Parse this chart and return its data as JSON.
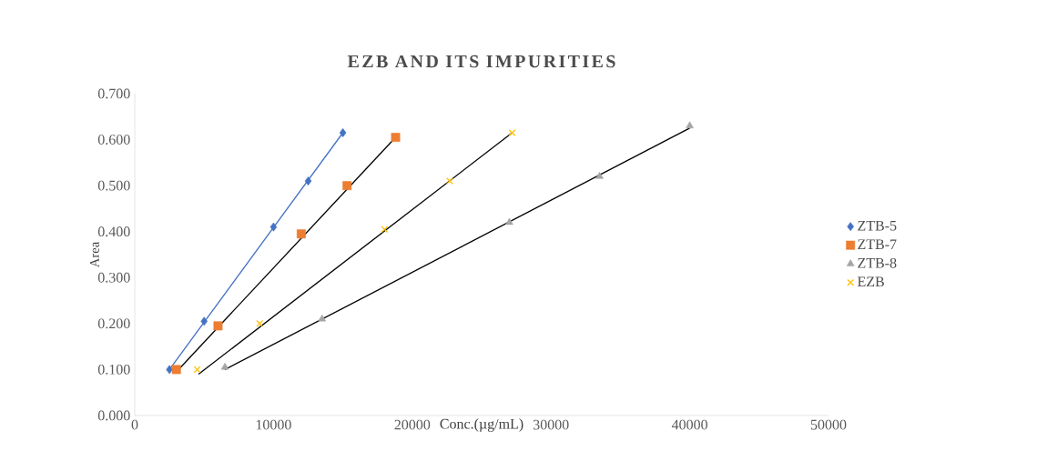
{
  "chart_data": {
    "type": "scatter",
    "title": "EZB AND ITS IMPURITIES",
    "xlabel": "Conc.(µg/mL)",
    "ylabel": "Area",
    "xlim": [
      0,
      50000
    ],
    "xticks": [
      0,
      10000,
      20000,
      30000,
      40000,
      50000
    ],
    "ylim": [
      0,
      0.7
    ],
    "yticks": [
      {
        "value": 0,
        "label": "0.000"
      },
      {
        "value": 0.1,
        "label": "0.100"
      },
      {
        "value": 0.2,
        "label": "0.200"
      },
      {
        "value": 0.3,
        "label": "0.300"
      },
      {
        "value": 0.4,
        "label": "0.400"
      },
      {
        "value": 0.5,
        "label": "0.500"
      },
      {
        "value": 0.6,
        "label": "0.600"
      },
      {
        "value": 0.7,
        "label": "0.700"
      }
    ],
    "grid": false,
    "legend": "right",
    "series": [
      {
        "name": "ZTB-5",
        "marker": "diamond",
        "color": "#4472c4",
        "x": [
          2500,
          5000,
          10000,
          12500,
          15000
        ],
        "values": [
          0.1,
          0.205,
          0.41,
          0.51,
          0.615
        ]
      },
      {
        "name": "ZTB-7",
        "marker": "square",
        "color": "#ed7d31",
        "x": [
          3000,
          6000,
          12000,
          15300,
          18800
        ],
        "values": [
          0.1,
          0.195,
          0.395,
          0.5,
          0.605
        ]
      },
      {
        "name": "ZTB-8",
        "marker": "triangle",
        "color": "#a5a5a5",
        "x": [
          6500,
          13500,
          27000,
          33500,
          40000
        ],
        "values": [
          0.105,
          0.21,
          0.42,
          0.52,
          0.63
        ]
      },
      {
        "name": "EZB",
        "marker": "cross",
        "color": "#ffc000",
        "x": [
          4500,
          9000,
          18000,
          22700,
          27200
        ],
        "values": [
          0.1,
          0.2,
          0.405,
          0.51,
          0.615
        ]
      },
      {
        "type": "line",
        "marker": "none",
        "color": "#4472c4",
        "x": [
          2500,
          15000
        ],
        "values": [
          0.1,
          0.615
        ]
      },
      {
        "type": "line",
        "marker": "none",
        "color": "#000000",
        "x": [
          3000,
          18800
        ],
        "values": [
          0.095,
          0.605
        ]
      },
      {
        "type": "line",
        "marker": "none",
        "color": "#000000",
        "x": [
          6500,
          40000
        ],
        "values": [
          0.1,
          0.625
        ]
      },
      {
        "type": "line",
        "marker": "none",
        "color": "#000000",
        "x": [
          4600,
          27200
        ],
        "values": [
          0.09,
          0.615
        ]
      }
    ]
  }
}
